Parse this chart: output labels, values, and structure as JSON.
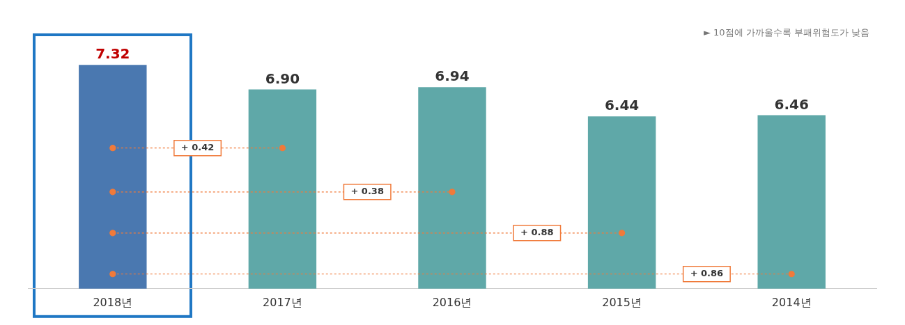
{
  "chart_data": {
    "type": "bar",
    "categories": [
      "2018년",
      "2017년",
      "2016년",
      "2015년",
      "2014년"
    ],
    "series": [
      {
        "values": [
          7.32,
          6.9,
          6.94,
          6.44,
          6.46
        ],
        "colors": [
          "#4a78b0",
          "#5fa8a8",
          "#5fa8a8",
          "#5fa8a8",
          "#5fa8a8"
        ],
        "value_labels": [
          "7.32",
          "6.90",
          "6.94",
          "6.44",
          "6.46"
        ]
      },
      {
        "type": "line",
        "color": "#f07a3a",
        "values": [
          5.9,
          5.9,
          null,
          null,
          null
        ]
      },
      {
        "type": "line",
        "color": "#f07a3a",
        "values": [
          5.15,
          null,
          5.15,
          null,
          null
        ]
      },
      {
        "type": "line",
        "color": "#f07a3a",
        "values": [
          4.45,
          null,
          null,
          4.45,
          null
        ]
      },
      {
        "type": "line",
        "color": "#f07a3a",
        "values": [
          3.75,
          null,
          null,
          null,
          3.75
        ]
      }
    ],
    "legend": false,
    "marker": "circle",
    "line_style": "dotted",
    "tick_labels": "x",
    "annotations": [
      "► 10점에 가까울수록 부패위험도가 낮음",
      "+ 0.42",
      "+ 0.38",
      "+ 0.88",
      "+ 0.86"
    ]
  }
}
